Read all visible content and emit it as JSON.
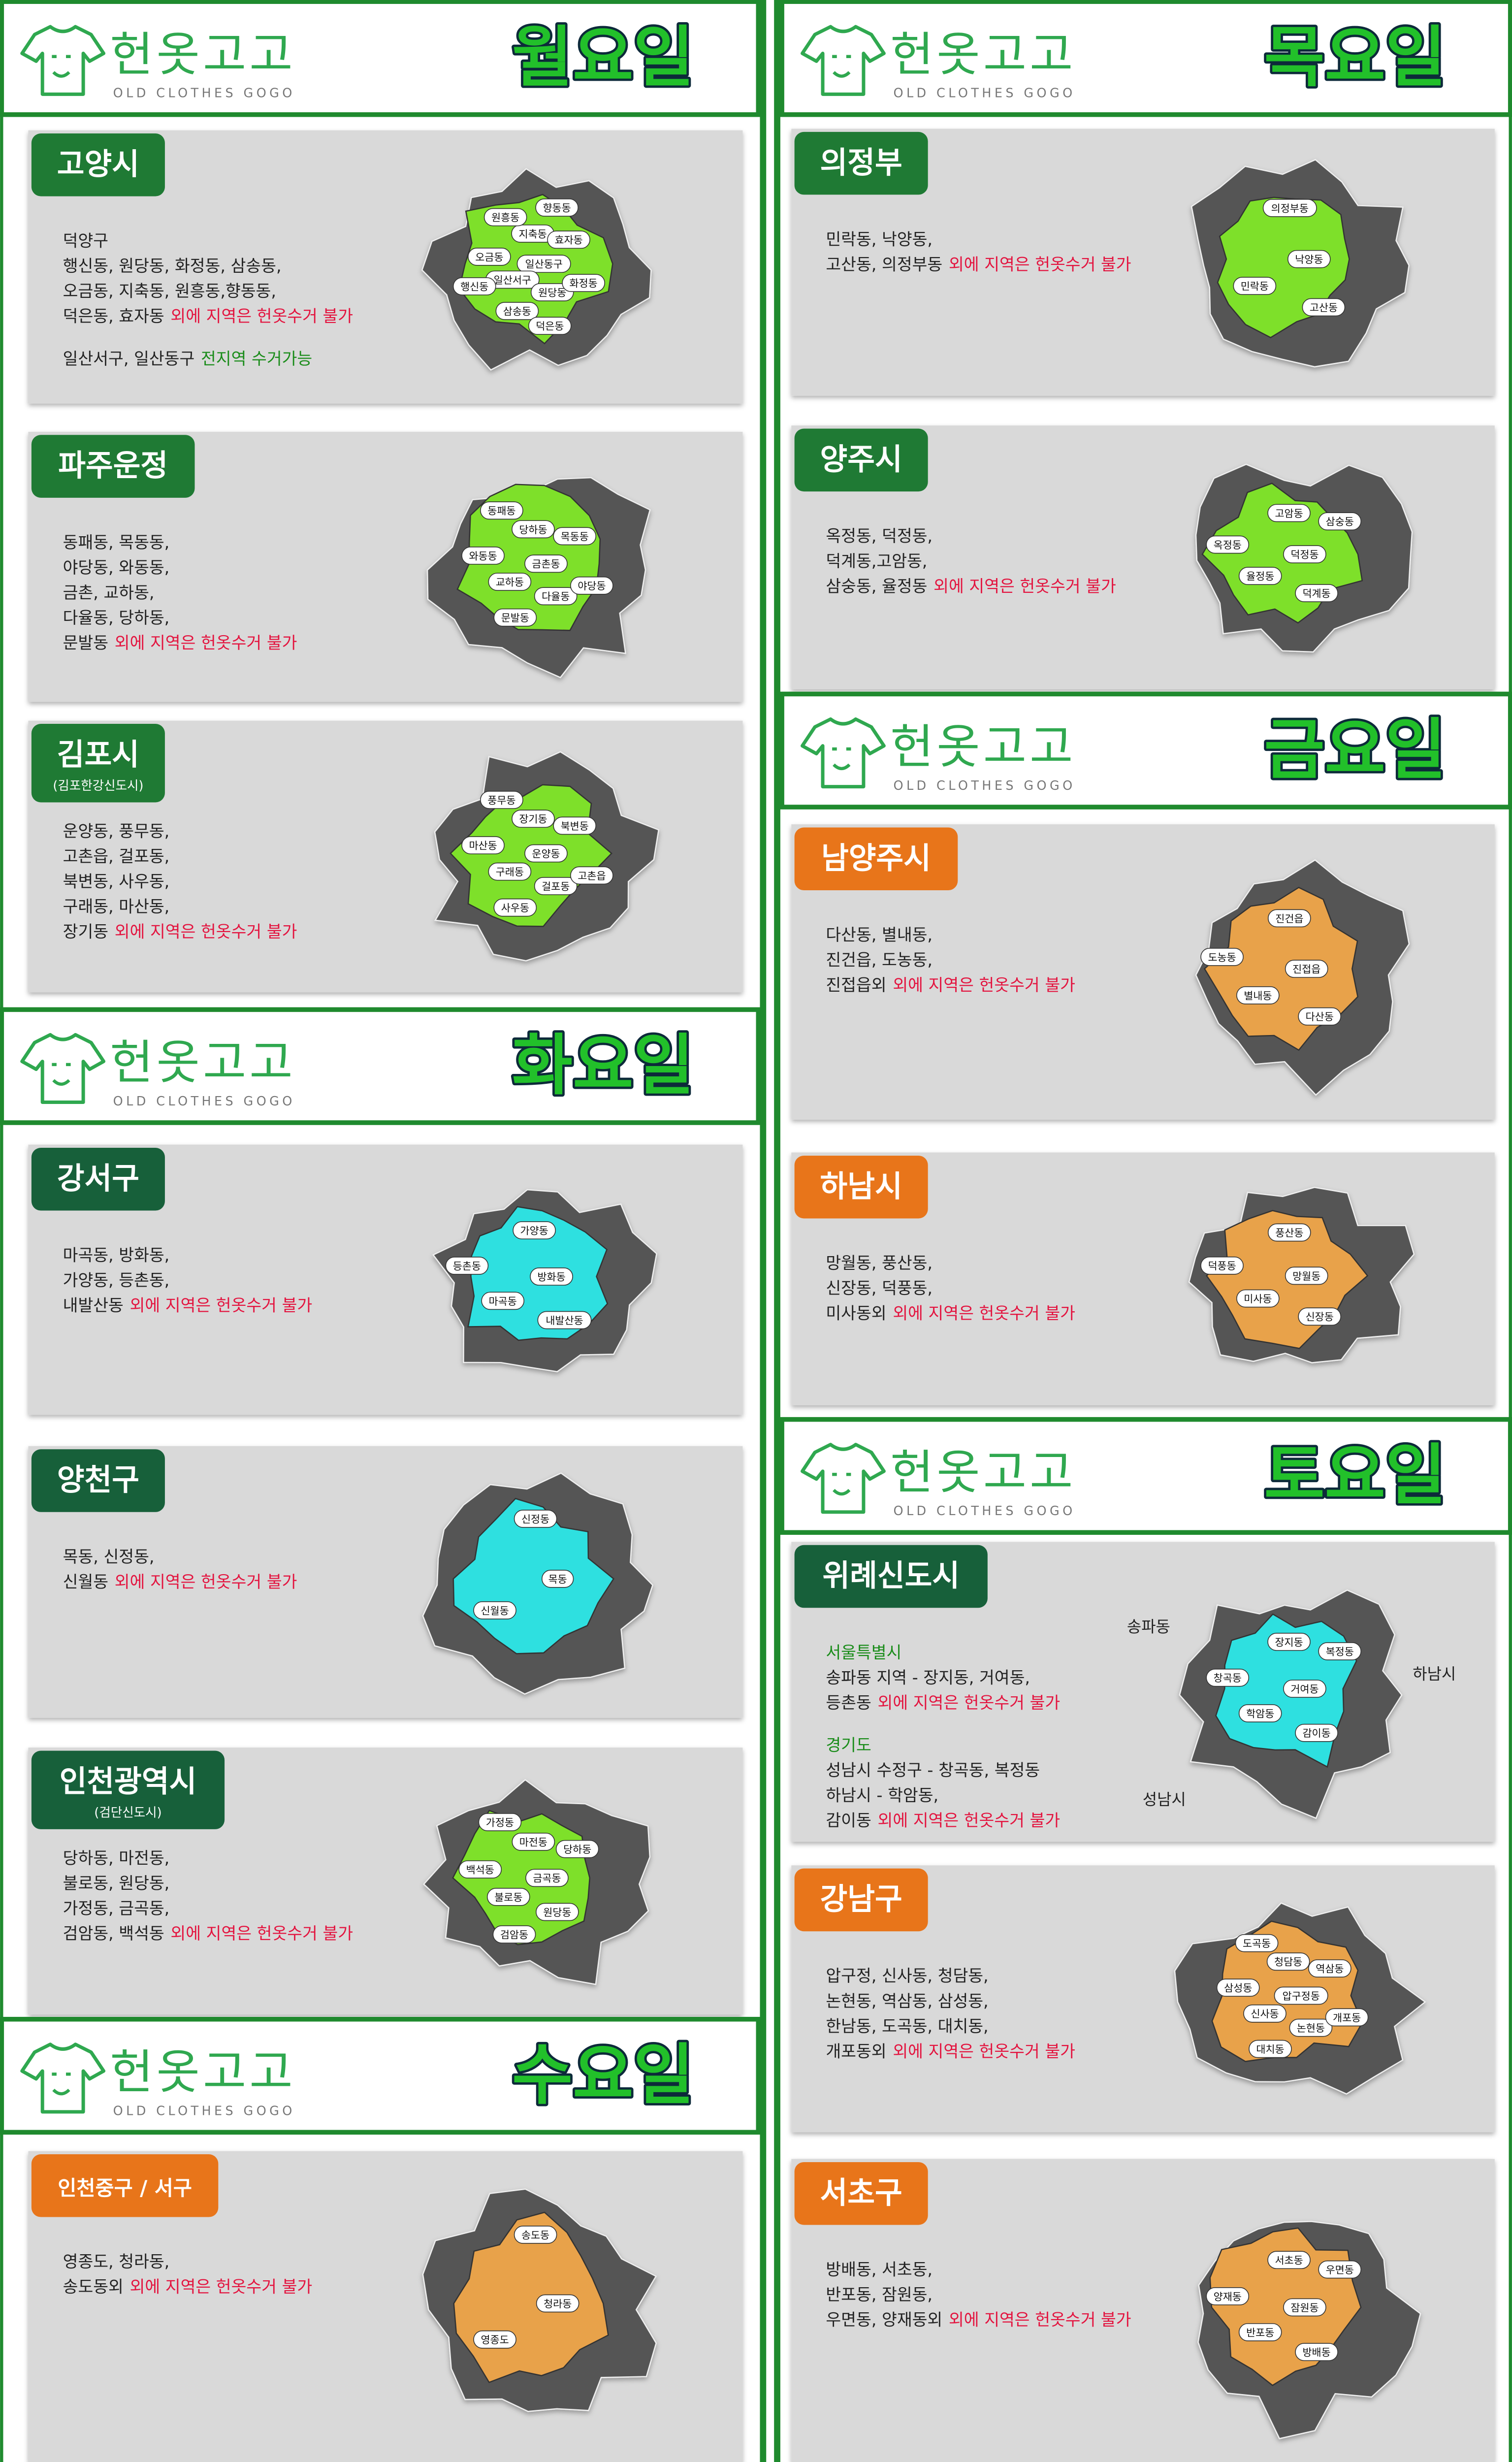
{
  "brand": {
    "name": "헌옷고고",
    "sub": "OLD CLOTHES GOGO"
  },
  "sections": [
    {
      "day": "월요일",
      "cards": [
        {
          "region": "고양시",
          "badge_color": "#1f7a34",
          "map_color": "#7ee02a",
          "paragraphs": [
            [
              [
                {
                  "text": "덕양구"
                }
              ],
              [
                {
                  "text": "행신동, 원당동, 화정동, 삼송동,"
                }
              ],
              [
                {
                  "text": "오금동, 지축동, 원흥동,향동동,"
                }
              ],
              [
                {
                  "text": "덕은동, 효자동"
                },
                {
                  "text": "외에 지역은 헌옷수거 불가",
                  "color": "#e3143f"
                }
              ]
            ],
            [
              [
                {
                  "text": "일산서구, 일산동구"
                },
                {
                  "text": "전지역 수거가능",
                  "color": "#1a8c1a"
                }
              ]
            ]
          ],
          "map_labels": [
            "일산동구",
            "일산서구",
            "지축동",
            "원당동",
            "오금동",
            "효자동",
            "삼송동",
            "원흥동",
            "화정동",
            "행신동",
            "향동동",
            "덕은동"
          ]
        },
        {
          "region": "파주운정",
          "badge_color": "#1f7a34",
          "map_color": "#7ee02a",
          "paragraphs": [
            [
              [
                {
                  "text": "동패동, 목동동,"
                }
              ],
              [
                {
                  "text": "야당동, 와동동,"
                }
              ],
              [
                {
                  "text": "금촌, 교하동,"
                }
              ],
              [
                {
                  "text": "다율동, 당하동,"
                }
              ],
              [
                {
                  "text": "문발동"
                },
                {
                  "text": "외에 지역은 헌옷수거 불가",
                  "color": "#e3143f"
                }
              ]
            ]
          ],
          "map_labels": [
            "금촌동",
            "교하동",
            "당하동",
            "다율동",
            "와동동",
            "목동동",
            "문발동",
            "동패동",
            "야당동"
          ]
        },
        {
          "region": "김포시",
          "sub": "(김포한강신도시)",
          "badge_color": "#1f7a34",
          "map_color": "#7ee02a",
          "paragraphs": [
            [
              [
                {
                  "text": "운양동, 풍무동,"
                }
              ],
              [
                {
                  "text": "고촌읍, 걸포동,"
                }
              ],
              [
                {
                  "text": "북변동, 사우동,"
                }
              ],
              [
                {
                  "text": "구래동, 마산동,"
                }
              ],
              [
                {
                  "text": "장기동"
                },
                {
                  "text": "외에 지역은 헌옷수거 불가",
                  "color": "#e3143f"
                }
              ]
            ]
          ],
          "map_labels": [
            "운양동",
            "구래동",
            "장기동",
            "걸포동",
            "마산동",
            "북변동",
            "사우동",
            "풍무동",
            "고촌읍"
          ]
        }
      ]
    },
    {
      "day": "화요일",
      "cards": [
        {
          "region": "강서구",
          "badge_color": "#17603a",
          "map_color": "#2ee0e0",
          "paragraphs": [
            [
              [
                {
                  "text": "마곡동, 방화동,"
                }
              ],
              [
                {
                  "text": "가양동, 등촌동,"
                }
              ],
              [
                {
                  "text": "내발산동"
                },
                {
                  "text": "외에 지역은 헌옷수거 불가",
                  "color": "#e3143f"
                }
              ]
            ]
          ],
          "map_labels": [
            "방화동",
            "마곡동",
            "가양동",
            "내발산동",
            "등촌동"
          ]
        },
        {
          "region": "양천구",
          "badge_color": "#17603a",
          "map_color": "#2ee0e0",
          "paragraphs": [
            [
              [
                {
                  "text": "목동, 신정동,"
                }
              ],
              [
                {
                  "text": "신월동"
                },
                {
                  "text": "외에 지역은 헌옷수거 불가",
                  "color": "#e3143f"
                }
              ]
            ]
          ],
          "map_labels": [
            "목동",
            "신월동",
            "신정동"
          ]
        },
        {
          "region": "인천광역시",
          "sub": "(검단신도시)",
          "badge_color": "#17603a",
          "map_color": "#7ee02a",
          "paragraphs": [
            [
              [
                {
                  "text": "당하동, 마전동,"
                }
              ],
              [
                {
                  "text": "불로동, 원당동,"
                }
              ],
              [
                {
                  "text": "가정동, 금곡동,"
                }
              ],
              [
                {
                  "text": "검암동, 백석동"
                },
                {
                  "text": "외에 지역은 헌옷수거 불가",
                  "color": "#e3143f"
                }
              ]
            ]
          ],
          "map_labels": [
            "금곡동",
            "불로동",
            "마전동",
            "원당동",
            "백석동",
            "당하동",
            "검암동",
            "가정동"
          ]
        }
      ]
    },
    {
      "day": "수요일",
      "cards": [
        {
          "region": "인천중구 / 서구",
          "badge_color": "#e8751a",
          "map_color": "#e8a24a",
          "paragraphs": [
            [
              [
                {
                  "text": "영종도, 청라동,"
                }
              ],
              [
                {
                  "text": "송도동외"
                },
                {
                  "text": "외에 지역은 헌옷수거 불가",
                  "color": "#e3143f"
                }
              ]
            ]
          ],
          "map_labels": [
            "청라동",
            "영종도",
            "송도동"
          ]
        }
      ]
    },
    {
      "day": "목요일",
      "cards": [
        {
          "region": "의정부",
          "badge_color": "#1f7a34",
          "map_color": "#7ee02a",
          "paragraphs": [
            [
              [
                {
                  "text": "민락동, 낙양동,"
                }
              ],
              [
                {
                  "text": "고산동, 의정부동"
                },
                {
                  "text": "외에 지역은 헌옷수거 불가",
                  "color": "#e3143f"
                }
              ]
            ]
          ],
          "map_labels": [
            "낙양동",
            "민락동",
            "의정부동",
            "고산동"
          ]
        },
        {
          "region": "양주시",
          "badge_color": "#1f7a34",
          "map_color": "#7ee02a",
          "paragraphs": [
            [
              [
                {
                  "text": "옥정동, 덕정동,"
                }
              ],
              [
                {
                  "text": "덕계동,고암동,"
                }
              ],
              [
                {
                  "text": "삼숭동, 율정동"
                },
                {
                  "text": "외에 지역은 헌옷수거 불가",
                  "color": "#e3143f"
                }
              ]
            ]
          ],
          "map_labels": [
            "덕정동",
            "율정동",
            "고암동",
            "덕계동",
            "옥정동",
            "삼숭동"
          ]
        }
      ]
    },
    {
      "day": "금요일",
      "cards": [
        {
          "region": "남양주시",
          "badge_color": "#e8751a",
          "map_color": "#e8a24a",
          "paragraphs": [
            [
              [
                {
                  "text": "다산동, 별내동,"
                }
              ],
              [
                {
                  "text": "진건읍, 도농동,"
                }
              ],
              [
                {
                  "text": "진접읍외"
                },
                {
                  "text": "외에 지역은 헌옷수거 불가",
                  "color": "#e3143f"
                }
              ]
            ]
          ],
          "map_labels": [
            "진접읍",
            "별내동",
            "진건읍",
            "다산동",
            "도농동"
          ]
        },
        {
          "region": "하남시",
          "badge_color": "#e8751a",
          "map_color": "#e8a24a",
          "paragraphs": [
            [
              [
                {
                  "text": "망월동, 풍산동,"
                }
              ],
              [
                {
                  "text": "신장동, 덕풍동,"
                }
              ],
              [
                {
                  "text": "미사동외"
                },
                {
                  "text": "외에 지역은 헌옷수거 불가",
                  "color": "#e3143f"
                }
              ]
            ]
          ],
          "map_labels": [
            "망월동",
            "미사동",
            "풍산동",
            "신장동",
            "덕풍동"
          ]
        }
      ]
    },
    {
      "day": "토요일",
      "cards": [
        {
          "region": "위례신도시",
          "badge_color": "#17603a",
          "map_color": "#2ee0e0",
          "paragraphs": [
            [
              [
                {
                  "text": "서울특별시",
                  "color": "#1a8c1a"
                }
              ],
              [
                {
                  "text": "송파동 지역 - 장지동, 거여동,"
                }
              ],
              [
                {
                  "text": "등촌동"
                },
                {
                  "text": "외에 지역은 헌옷수거 불가",
                  "color": "#e3143f"
                }
              ]
            ],
            [
              [
                {
                  "text": "경기도",
                  "color": "#1a8c1a"
                }
              ],
              [
                {
                  "text": "성남시 수정구 - 창곡동, 복정동"
                }
              ],
              [
                {
                  "text": "하남시 - 학암동,"
                }
              ],
              [
                {
                  "text": "감이동"
                },
                {
                  "text": "외에 지역은 헌옷수거 불가",
                  "color": "#e3143f"
                }
              ]
            ]
          ],
          "map_labels": [
            "거여동",
            "학암동",
            "장지동",
            "감이동",
            "창곡동",
            "복정동"
          ],
          "map_side_labels": [
            "송파동",
            "하남시",
            "성남시"
          ]
        },
        {
          "region": "강남구",
          "badge_color": "#e8751a",
          "map_color": "#e8a24a",
          "paragraphs": [
            [
              [
                {
                  "text": "압구정, 신사동, 청담동,"
                }
              ],
              [
                {
                  "text": "논현동, 역삼동, 삼성동,"
                }
              ],
              [
                {
                  "text": "한남동, 도곡동, 대치동,"
                }
              ],
              [
                {
                  "text": "개포동외"
                },
                {
                  "text": "외에 지역은 헌옷수거 불가",
                  "color": "#e3143f"
                }
              ]
            ]
          ],
          "map_labels": [
            "압구정동",
            "신사동",
            "청담동",
            "논현동",
            "삼성동",
            "역삼동",
            "대치동",
            "도곡동",
            "개포동"
          ]
        },
        {
          "region": "서초구",
          "badge_color": "#e8751a",
          "map_color": "#e8a24a",
          "paragraphs": [
            [
              [
                {
                  "text": "방배동, 서초동,"
                }
              ],
              [
                {
                  "text": "반포동, 잠원동,"
                }
              ],
              [
                {
                  "text": "우면동, 양재동외"
                },
                {
                  "text": "외에 지역은 헌옷수거 불가",
                  "color": "#e3143f"
                }
              ]
            ]
          ],
          "map_labels": [
            "잠원동",
            "반포동",
            "서초동",
            "방배동",
            "양재동",
            "우면동"
          ]
        }
      ]
    }
  ]
}
